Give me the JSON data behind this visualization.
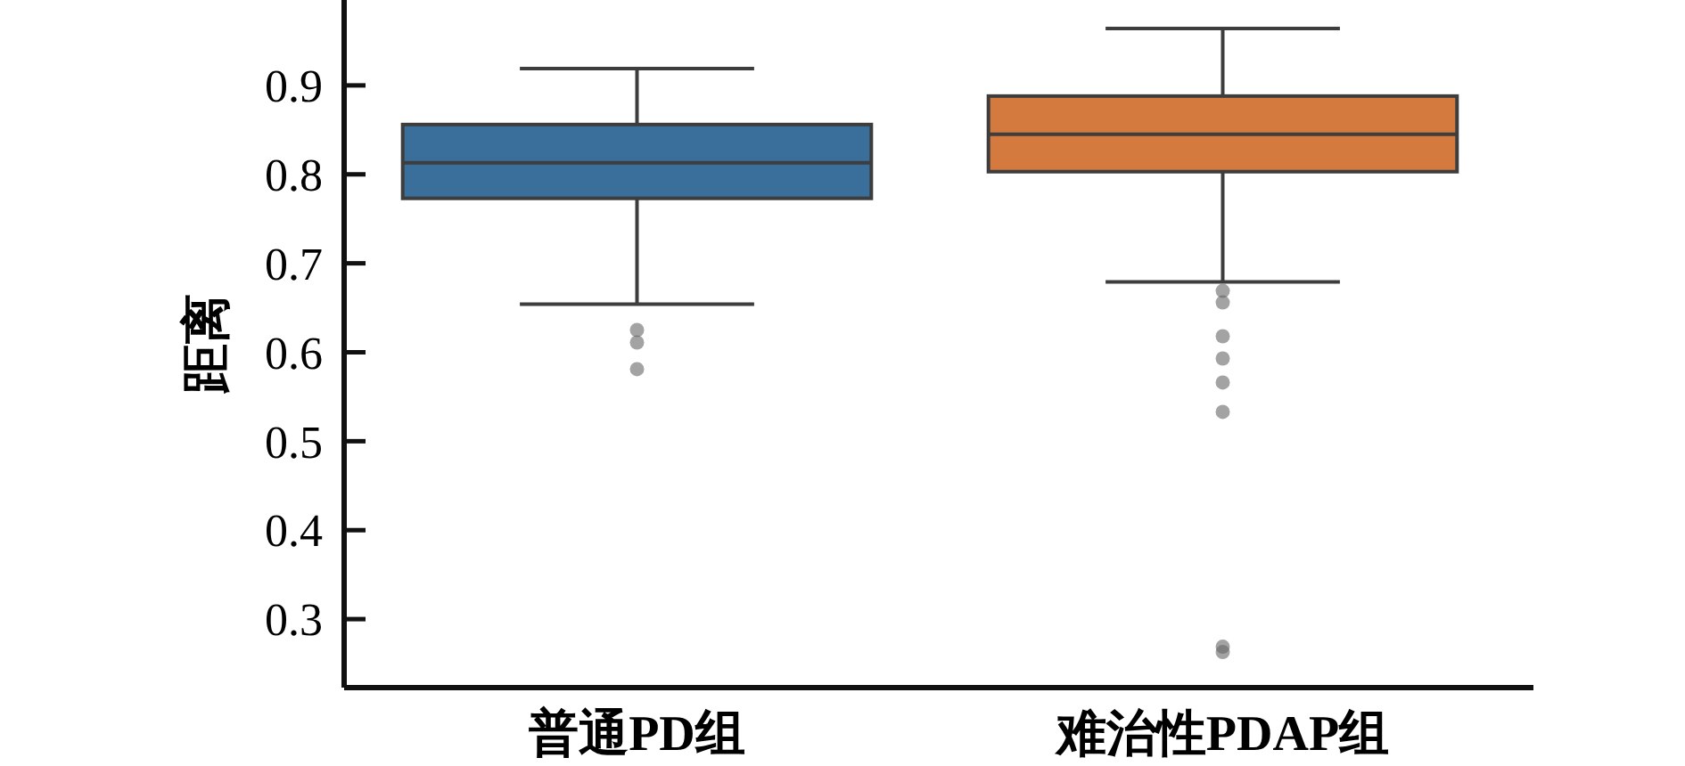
{
  "chart_data": {
    "type": "box",
    "ylabel": "距离",
    "categories": [
      "普通PD组",
      "难治性PDAP组"
    ],
    "colors": [
      "#3a6f9c",
      "#d47a3e"
    ],
    "boxes": [
      {
        "low": 0.654,
        "q1": 0.773,
        "median": 0.813,
        "q3": 0.856,
        "high": 0.919,
        "outliers": [
          0.625,
          0.611,
          0.581
        ]
      },
      {
        "low": 0.679,
        "q1": 0.803,
        "median": 0.845,
        "q3": 0.888,
        "high": 0.964,
        "outliers": [
          0.669,
          0.656,
          0.618,
          0.593,
          0.566,
          0.533,
          0.269,
          0.263
        ]
      }
    ],
    "ylim": [
      0.223,
      0.996
    ],
    "yticks": [
      0.3,
      0.4,
      0.5,
      0.6,
      0.7,
      0.8,
      0.9
    ],
    "grid": false
  }
}
